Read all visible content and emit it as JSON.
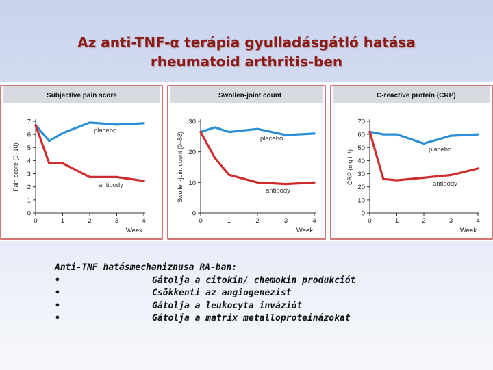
{
  "title": {
    "line1": "Az anti-TNF-α terápia gyulladásgátló hatása",
    "line2": "rheumatoid arthritis-ben"
  },
  "colors": {
    "placebo": "#2a8fd6",
    "antibody": "#cf2d2d",
    "title_text": "#8b1a1a",
    "frame": "#b31d1d"
  },
  "chart_data": [
    {
      "type": "line",
      "title": "Subjective pain score",
      "ylabel": "Pain score (0–10)",
      "xlabel": "Week",
      "x": [
        0,
        0.5,
        1,
        2,
        3,
        4
      ],
      "ylim": [
        0,
        7
      ],
      "yticks": [
        0,
        1,
        2,
        3,
        4,
        5,
        6,
        7
      ],
      "xticks": [
        0,
        1,
        2,
        3,
        4
      ],
      "series": [
        {
          "name": "placebo",
          "values": [
            6.7,
            5.5,
            6.1,
            6.9,
            6.75,
            6.85
          ]
        },
        {
          "name": "antibody",
          "values": [
            6.7,
            3.8,
            3.8,
            2.75,
            2.75,
            2.45
          ]
        }
      ]
    },
    {
      "type": "line",
      "title": "Swollen-joint count",
      "ylabel": "Swollen-joint count (0–58)",
      "xlabel": "Week",
      "x": [
        0,
        0.5,
        1,
        2,
        3,
        4
      ],
      "ylim": [
        0,
        30
      ],
      "yticks": [
        0,
        10,
        20,
        30
      ],
      "xticks": [
        0,
        1,
        2,
        3,
        4
      ],
      "series": [
        {
          "name": "placebo",
          "values": [
            26.5,
            28,
            26.5,
            27.5,
            25.5,
            26
          ]
        },
        {
          "name": "antibody",
          "values": [
            26.5,
            18,
            12.5,
            10,
            9.5,
            10
          ]
        }
      ]
    },
    {
      "type": "line",
      "title": "C-reactive protein (CRP)",
      "ylabel": "CRP (mg l⁻¹)",
      "xlabel": "Week",
      "x": [
        0,
        0.5,
        1,
        2,
        3,
        4
      ],
      "ylim": [
        0,
        70
      ],
      "yticks": [
        0,
        10,
        20,
        30,
        40,
        50,
        60,
        70
      ],
      "xticks": [
        0,
        1,
        2,
        3,
        4
      ],
      "series": [
        {
          "name": "placebo",
          "values": [
            62,
            60,
            60,
            53,
            59,
            60
          ]
        },
        {
          "name": "antibody",
          "values": [
            62,
            26,
            25,
            27,
            29,
            34
          ]
        }
      ]
    }
  ],
  "notes": {
    "heading": "Anti-TNF hatásmechaniznusa RA-ban:",
    "items": [
      {
        "bullet": "•",
        "text": "Gátolja a citokin/ chemokin produkciót"
      },
      {
        "bullet": "•",
        "text": "Csökkenti az angiogenezist"
      },
      {
        "bullet": "•",
        "text": "Gátolja a leukocyta inváziót"
      },
      {
        "bullet": "•",
        "text": "Gátolja a matrix metalloproteinázokat"
      }
    ]
  }
}
